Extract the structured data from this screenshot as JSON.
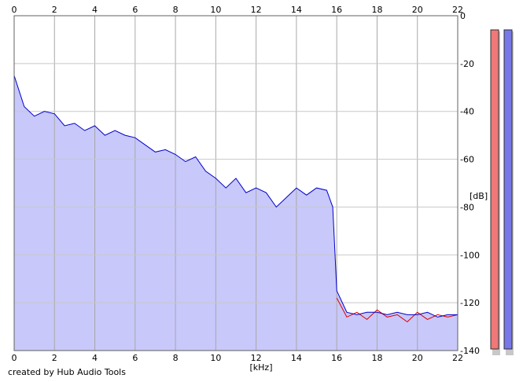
{
  "chart_data": {
    "type": "area",
    "title": "",
    "xlabel": "[kHz]",
    "ylabel": "[dB]",
    "xlim": [
      0,
      22
    ],
    "ylim": [
      -140,
      0
    ],
    "x_ticks": [
      0,
      2,
      4,
      6,
      8,
      10,
      12,
      14,
      16,
      18,
      20,
      22
    ],
    "y_ticks": [
      0,
      -20,
      -40,
      -60,
      -80,
      -100,
      -120,
      -140
    ],
    "grid": true,
    "legend": "none",
    "series": [
      {
        "color": "#0000cc",
        "fill": "#c8c8fa",
        "x": [
          0,
          0.5,
          1,
          1.5,
          2,
          2.5,
          3,
          3.5,
          4,
          4.5,
          5,
          5.5,
          6,
          6.5,
          7,
          7.5,
          8,
          8.5,
          9,
          9.5,
          10,
          10.5,
          11,
          11.5,
          12,
          12.5,
          13,
          13.5,
          14,
          14.5,
          15,
          15.5,
          15.8,
          16,
          16.5,
          17,
          17.5,
          18,
          18.5,
          19,
          19.5,
          20,
          20.5,
          21,
          21.5,
          22
        ],
        "values": [
          -25,
          -38,
          -42,
          -40,
          -41,
          -46,
          -45,
          -48,
          -46,
          -50,
          -48,
          -50,
          -51,
          -54,
          -57,
          -56,
          -58,
          -61,
          -59,
          -65,
          -68,
          -72,
          -68,
          -74,
          -72,
          -74,
          -80,
          -76,
          -72,
          -75,
          -72,
          -73,
          -80,
          -115,
          -124,
          -125,
          -124,
          -124,
          -125,
          -124,
          -125,
          -125,
          -124,
          -126,
          -125,
          -125
        ]
      },
      {
        "color": "#dd0000",
        "x": [
          16,
          16.5,
          17,
          17.5,
          18,
          18.5,
          19,
          19.5,
          20,
          20.5,
          21,
          21.5,
          22
        ],
        "values": [
          -118,
          -126,
          -124,
          -127,
          -123,
          -126,
          -125,
          -128,
          -124,
          -127,
          -125,
          -126,
          -125
        ]
      }
    ]
  },
  "meters": [
    {
      "color": "#f07878",
      "level": 1.0
    },
    {
      "color": "#7878e8",
      "level": 1.0
    }
  ],
  "footer": {
    "credit": "created by Hub Audio Tools"
  }
}
